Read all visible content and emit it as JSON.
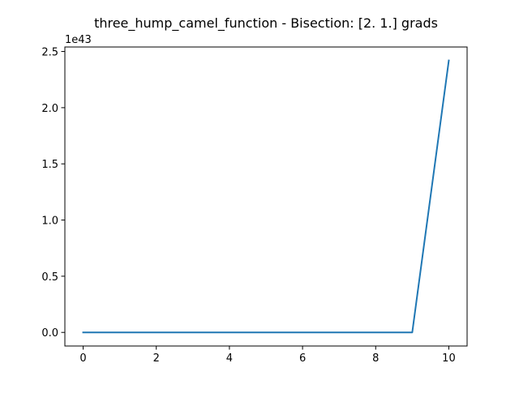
{
  "chart_data": {
    "type": "line",
    "title": "three_hump_camel_function - Bisection: [2. 1.] grads",
    "xlabel": "",
    "ylabel": "",
    "y_offset_label": "1e43",
    "y_scale": 1e+43,
    "xlim": [
      -0.5,
      10.5
    ],
    "ylim": [
      -0.121,
      2.54
    ],
    "x_ticks": [
      0,
      2,
      4,
      6,
      8,
      10
    ],
    "x_tick_labels": [
      "0",
      "2",
      "4",
      "6",
      "8",
      "10"
    ],
    "y_ticks": [
      0.0,
      0.5,
      1.0,
      1.5,
      2.0,
      2.5
    ],
    "y_tick_labels": [
      "0.0",
      "0.5",
      "1.0",
      "1.5",
      "2.0",
      "2.5"
    ],
    "grid": false,
    "series": [
      {
        "color": "#1f77b4",
        "x": [
          0,
          1,
          2,
          3,
          4,
          5,
          6,
          7,
          8,
          9,
          10
        ],
        "y": [
          0,
          0,
          0,
          0,
          0,
          0,
          0,
          0,
          0,
          0,
          2.42
        ]
      }
    ]
  }
}
